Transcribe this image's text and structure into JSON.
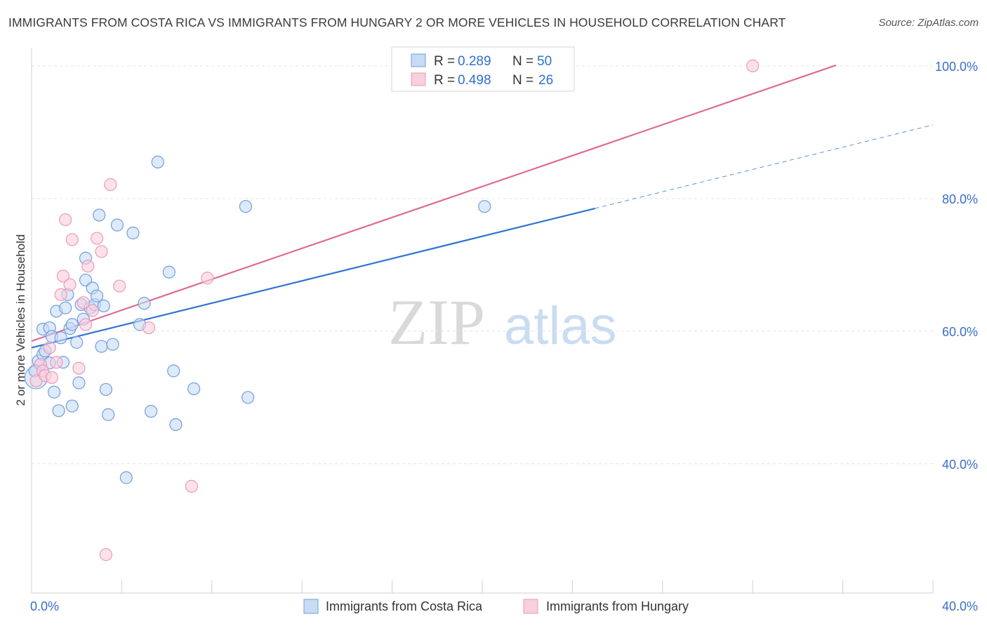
{
  "title": "IMMIGRANTS FROM COSTA RICA VS IMMIGRANTS FROM HUNGARY 2 OR MORE VEHICLES IN HOUSEHOLD CORRELATION CHART",
  "source": "Source: ZipAtlas.com",
  "watermark": {
    "zip": "ZIP",
    "atlas": "atlas"
  },
  "chart_data": {
    "type": "scatter",
    "xlabel": "",
    "ylabel": "2 or more Vehicles in Household",
    "xlim": [
      0,
      40
    ],
    "ylim": [
      20.5,
      102
    ],
    "x_tick_labels": [
      {
        "value": 0,
        "label": "0.0%"
      },
      {
        "value": 40,
        "label": "40.0%"
      }
    ],
    "y_tick_labels": [
      {
        "value": 40,
        "label": "40.0%"
      },
      {
        "value": 60,
        "label": "60.0%"
      },
      {
        "value": 80,
        "label": "80.0%"
      },
      {
        "value": 100,
        "label": "100.0%"
      }
    ],
    "legend": [
      {
        "r_label": "R =",
        "r": "0.289",
        "n_label": "N =",
        "n": "50"
      },
      {
        "r_label": "R =",
        "r": "0.498",
        "n_label": "N =",
        "n": "26"
      }
    ],
    "series": [
      {
        "name": "Immigrants from Costa Rica",
        "color": "#6f9fe0",
        "fill": "#c8dbf5",
        "line_color": "#2f74d3",
        "trend": {
          "x0": 0,
          "y0": 57.5,
          "x1": 25,
          "y1": 78.5,
          "dash_to_x": 40,
          "dash_to_y": 91.1
        },
        "points": [
          [
            0.2,
            53.0
          ],
          [
            0.3,
            55.5
          ],
          [
            0.4,
            55.0
          ],
          [
            0.5,
            56.5
          ],
          [
            0.6,
            57.0
          ],
          [
            0.8,
            55.2
          ],
          [
            0.5,
            60.3
          ],
          [
            0.8,
            60.5
          ],
          [
            0.9,
            59.2
          ],
          [
            1.0,
            50.8
          ],
          [
            1.1,
            63.0
          ],
          [
            1.2,
            48.0
          ],
          [
            1.3,
            59.0
          ],
          [
            1.4,
            55.3
          ],
          [
            1.5,
            63.5
          ],
          [
            1.6,
            65.5
          ],
          [
            1.7,
            60.4
          ],
          [
            1.8,
            48.7
          ],
          [
            1.8,
            61.0
          ],
          [
            2.0,
            58.3
          ],
          [
            2.1,
            52.2
          ],
          [
            2.3,
            61.8
          ],
          [
            2.2,
            64.0
          ],
          [
            2.4,
            67.7
          ],
          [
            2.4,
            71.0
          ],
          [
            2.6,
            63.5
          ],
          [
            2.7,
            66.5
          ],
          [
            2.8,
            64.0
          ],
          [
            2.9,
            65.3
          ],
          [
            3.0,
            77.5
          ],
          [
            3.1,
            57.7
          ],
          [
            3.2,
            63.8
          ],
          [
            3.3,
            51.2
          ],
          [
            3.4,
            47.4
          ],
          [
            3.6,
            58.0
          ],
          [
            3.8,
            76.0
          ],
          [
            4.2,
            37.9
          ],
          [
            4.5,
            74.8
          ],
          [
            4.8,
            61.0
          ],
          [
            5.0,
            64.2
          ],
          [
            5.3,
            47.9
          ],
          [
            5.6,
            85.5
          ],
          [
            6.1,
            68.9
          ],
          [
            6.3,
            54.0
          ],
          [
            6.4,
            45.9
          ],
          [
            7.2,
            51.3
          ],
          [
            9.5,
            78.8
          ],
          [
            9.6,
            50.0
          ],
          [
            20.1,
            78.8
          ],
          [
            0.15,
            54.0
          ]
        ]
      },
      {
        "name": "Immigrants from Hungary",
        "color": "#ec9ab6",
        "fill": "#f8cfdc",
        "line_color": "#e06a94",
        "trend": {
          "x0": 0,
          "y0": 58.5,
          "x1": 35.7,
          "y1": 100.1
        },
        "points": [
          [
            0.2,
            52.5
          ],
          [
            0.4,
            55.0
          ],
          [
            0.5,
            54.0
          ],
          [
            0.6,
            53.3
          ],
          [
            0.8,
            57.5
          ],
          [
            0.9,
            53.0
          ],
          [
            1.1,
            55.3
          ],
          [
            1.3,
            65.5
          ],
          [
            1.4,
            68.3
          ],
          [
            1.5,
            76.8
          ],
          [
            1.7,
            67.0
          ],
          [
            1.8,
            73.8
          ],
          [
            2.1,
            54.4
          ],
          [
            2.3,
            64.3
          ],
          [
            2.4,
            61.0
          ],
          [
            2.5,
            69.8
          ],
          [
            2.7,
            63.1
          ],
          [
            2.9,
            74.0
          ],
          [
            3.1,
            72.0
          ],
          [
            3.3,
            26.3
          ],
          [
            3.5,
            82.1
          ],
          [
            3.9,
            66.8
          ],
          [
            5.2,
            60.5
          ],
          [
            7.1,
            36.6
          ],
          [
            7.8,
            68.0
          ],
          [
            32.0,
            100.0
          ]
        ]
      }
    ]
  }
}
